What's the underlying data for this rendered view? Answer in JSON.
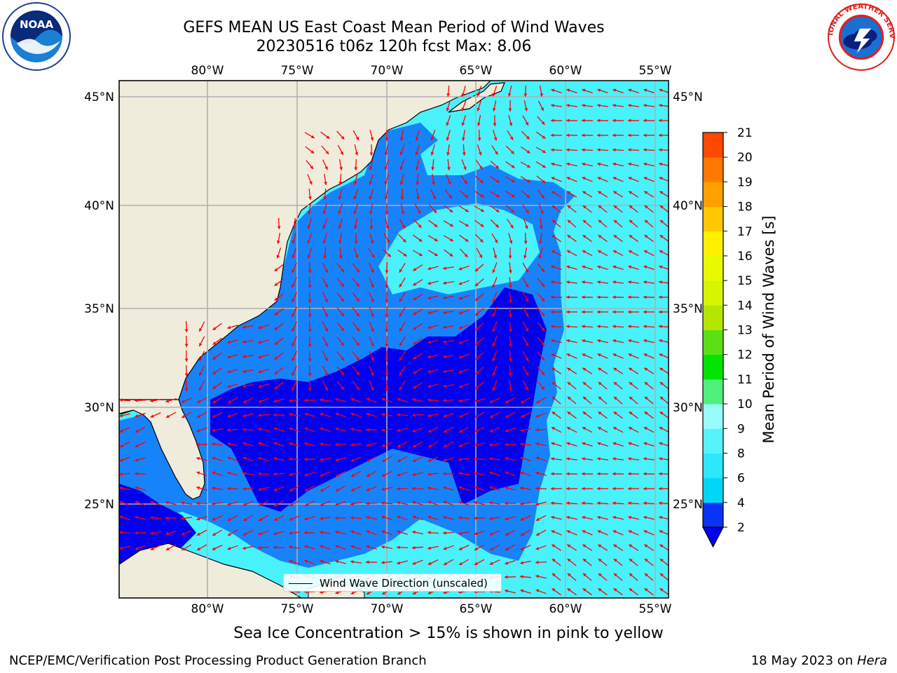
{
  "header": {
    "title_line1": "GEFS MEAN US East Coast Mean Period of Wind Waves",
    "title_line2": "20230516 t06z 120h fcst   Max: 8.06"
  },
  "logos": {
    "left": "noaa-logo",
    "right": "nws-logo",
    "left_text": "NOAA",
    "right_text": "NATIONAL WEATHER SERVICE"
  },
  "map": {
    "lon_ticks": [
      "80°W",
      "75°W",
      "70°W",
      "65°W",
      "60°W",
      "55°W"
    ],
    "lat_ticks": [
      "45°N",
      "40°N",
      "35°N",
      "30°N",
      "25°N"
    ],
    "extent": {
      "lon_min": -85,
      "lon_max": -54.3,
      "lat_min": 20.5,
      "lat_max": 45.8
    },
    "gridlines": true,
    "legend_label": "Wind Wave Direction (unscaled)",
    "colors": {
      "land": "#efecdc",
      "coast": "#000000",
      "arrows": "#ff0000",
      "grid": "#b0b0b0"
    }
  },
  "colorbar": {
    "label": "Mean Period of Wind Waves [s]",
    "ticks": [
      "2",
      "4",
      "6",
      "8",
      "9",
      "10",
      "11",
      "12",
      "13",
      "14",
      "15",
      "16",
      "17",
      "18",
      "19",
      "20",
      "21"
    ],
    "colors": [
      "#0a34f5",
      "#00d7f7",
      "#2ee7fa",
      "#55f4fb",
      "#98fcfb",
      "#4ff17a",
      "#00e600",
      "#5ae013",
      "#b4e600",
      "#d5f500",
      "#e8fa00",
      "#fff000",
      "#ffc800",
      "#ffa000",
      "#ff7800",
      "#ff4800",
      "#ff1f00",
      "#ff0000"
    ],
    "extend_color": "#0000f0"
  },
  "footer": {
    "note": "Sea Ice Concentration > 15% is shown in pink to yellow",
    "left": "NCEP/EMC/Verification Post Processing Product Generation Branch",
    "right_date": "18 May 2023 on ",
    "right_machine": "Hera"
  }
}
